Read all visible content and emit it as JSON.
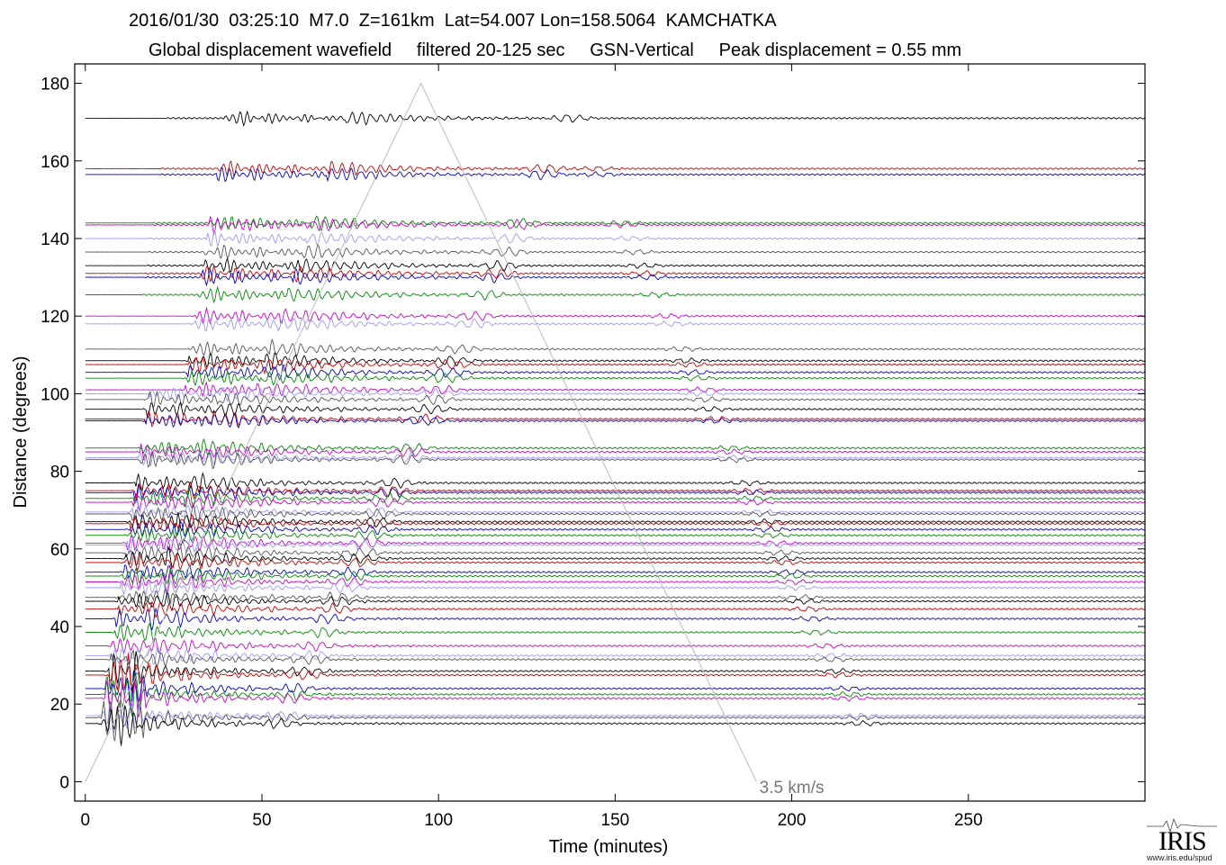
{
  "header": {
    "line1": "2016/01/30  03:25:10  M7.0  Z=161km  Lat=54.007 Lon=158.5064  KAMCHATKA",
    "line2": "Global displacement wavefield     filtered 20-125 sec     GSN-Vertical     Peak displacement = 0.55 mm"
  },
  "chart_data": {
    "type": "line",
    "title": "2016/01/30  03:25:10  M7.0  Z=161km  Lat=54.007 Lon=158.5064  KAMCHATKA",
    "subtitle": "Global displacement wavefield     filtered 20-125 sec     GSN-Vertical     Peak displacement = 0.55 mm",
    "xlabel": "Time (minutes)",
    "ylabel": "Distance (degrees)",
    "xlim": [
      -3,
      300
    ],
    "ylim": [
      -5,
      185
    ],
    "xticks": [
      0,
      50,
      100,
      150,
      200,
      250
    ],
    "yticks": [
      0,
      20,
      40,
      60,
      80,
      100,
      120,
      140,
      160,
      180
    ],
    "grid": false,
    "annotation": {
      "text": "3.5 km/s",
      "x": 200,
      "y": -2
    },
    "reference_line": {
      "label": "3.5 km/s",
      "points": [
        [
          0,
          0
        ],
        [
          95,
          180
        ],
        [
          190,
          0
        ]
      ]
    },
    "trace_colors": [
      "#000000",
      "#cc0000",
      "#0000cc",
      "#008800",
      "#cc00cc",
      "#9999ff",
      "#555555"
    ],
    "trace_distances": [
      171,
      158,
      156.5,
      144,
      143.5,
      140,
      136.5,
      133,
      131,
      130,
      125.5,
      120,
      118,
      111.5,
      108.5,
      107.5,
      105.5,
      104,
      101,
      100,
      98.5,
      96,
      93.5,
      93,
      86,
      85,
      83.5,
      83,
      77,
      75,
      74.5,
      73,
      72,
      69.5,
      69,
      67,
      66.5,
      65,
      63.5,
      61.5,
      61,
      59,
      57.5,
      56.5,
      54,
      53,
      51.5,
      50,
      47.5,
      46.5,
      44.5,
      42,
      38.5,
      35,
      32.5,
      31.5,
      28.5,
      27.5,
      24,
      22.5,
      21.5,
      17,
      16.5,
      15
    ]
  },
  "logo": {
    "text": "IRIS",
    "url": "www.iris.edu/spud"
  }
}
